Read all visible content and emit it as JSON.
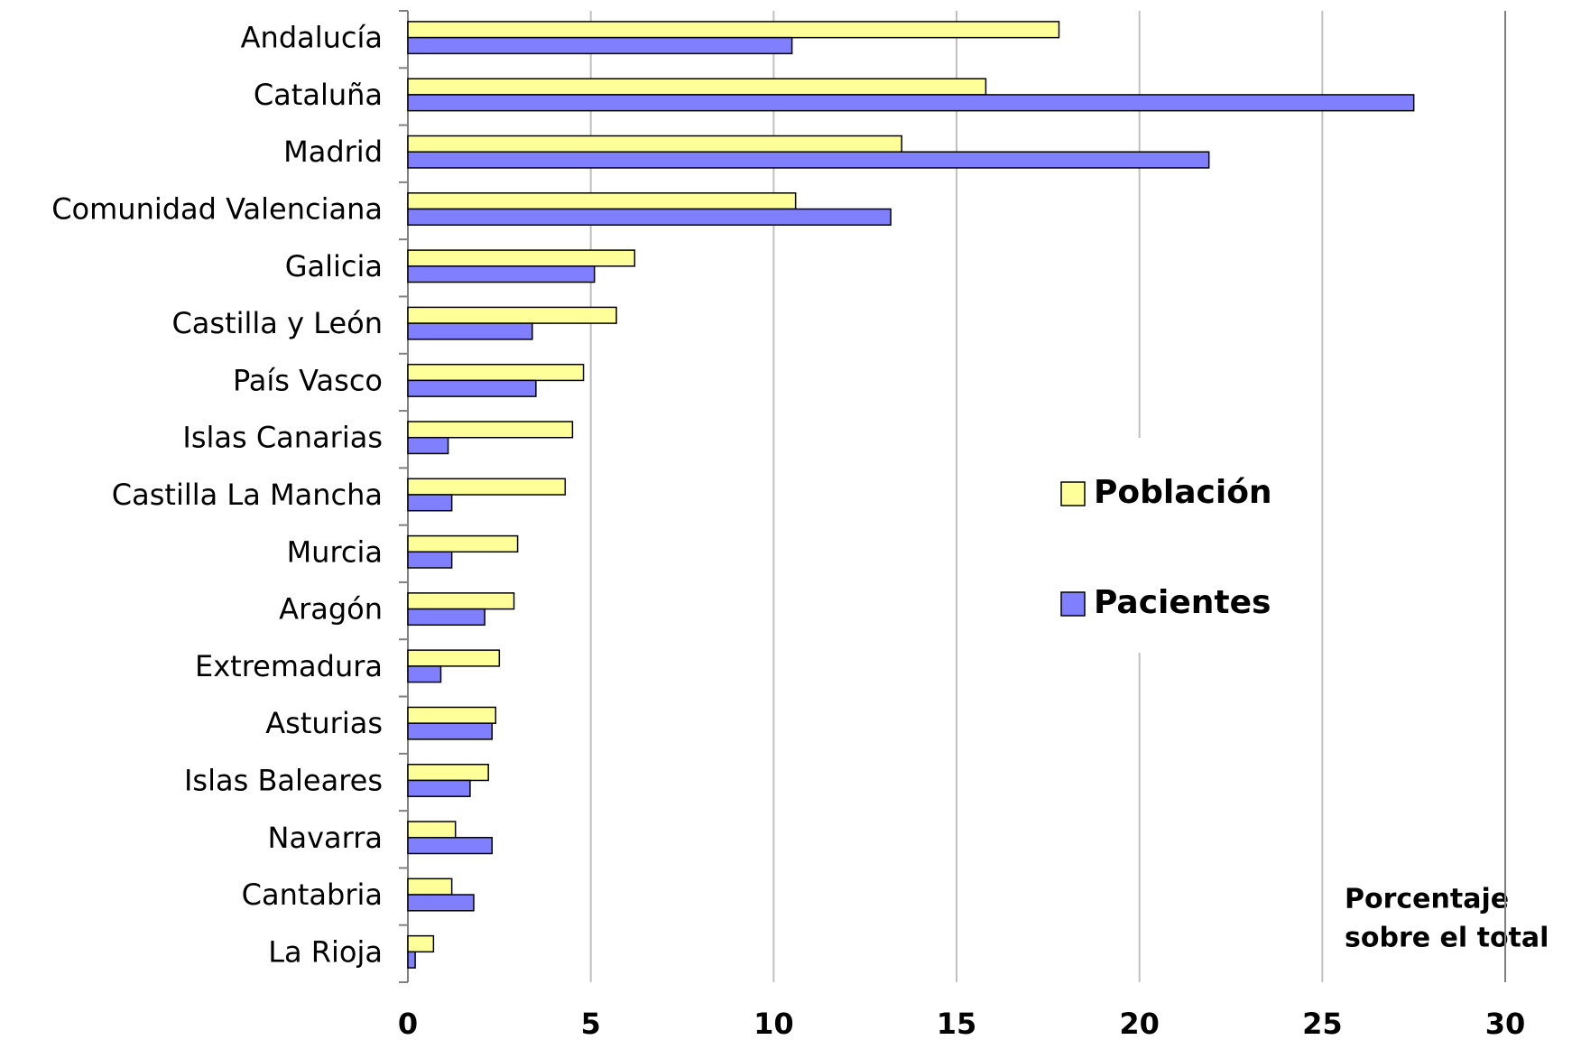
{
  "chart_data": {
    "type": "bar",
    "orientation": "horizontal",
    "categories": [
      "Andalucía",
      "Cataluña",
      "Madrid",
      "Comunidad Valenciana",
      "Galicia",
      "Castilla y León",
      "País Vasco",
      "Islas Canarias",
      "Castilla La Mancha",
      "Murcia",
      "Aragón",
      "Extremadura",
      "Asturias",
      "Islas Baleares",
      "Navarra",
      "Cantabria",
      "La Rioja"
    ],
    "series": [
      {
        "name": "Población",
        "color": "#ffff99",
        "values": [
          17.8,
          15.8,
          13.5,
          10.6,
          6.2,
          5.7,
          4.8,
          4.5,
          4.3,
          3.0,
          2.9,
          2.5,
          2.4,
          2.2,
          1.3,
          1.2,
          0.7
        ]
      },
      {
        "name": "Pacientes",
        "color": "#8080ff",
        "values": [
          10.5,
          27.5,
          21.9,
          13.2,
          5.1,
          3.4,
          3.5,
          1.1,
          1.2,
          1.2,
          2.1,
          0.9,
          2.3,
          1.7,
          2.3,
          1.8,
          0.2
        ]
      }
    ],
    "xlim": [
      0,
      30
    ],
    "xticks": [
      0,
      5,
      10,
      15,
      20,
      25,
      30
    ],
    "grid": true,
    "xlabel": [
      "Porcentaje",
      "sobre el total"
    ]
  }
}
